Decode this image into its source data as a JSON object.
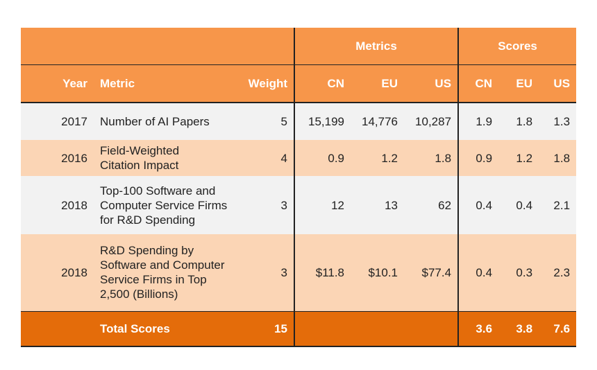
{
  "chart_data": {
    "type": "table",
    "group_headers": {
      "metrics": "Metrics",
      "scores": "Scores"
    },
    "columns": {
      "year": "Year",
      "metric": "Metric",
      "weight": "Weight",
      "metrics_cn": "CN",
      "metrics_eu": "EU",
      "metrics_us": "US",
      "scores_cn": "CN",
      "scores_eu": "EU",
      "scores_us": "US"
    },
    "rows": [
      {
        "year": "2017",
        "metric": "Number of AI Papers",
        "weight": "5",
        "m_cn": "15,199",
        "m_eu": "14,776",
        "m_us": "10,287",
        "s_cn": "1.9",
        "s_eu": "1.8",
        "s_us": "1.3"
      },
      {
        "year": "2016",
        "metric": "Field-Weighted Citation Impact",
        "weight": "4",
        "m_cn": "0.9",
        "m_eu": "1.2",
        "m_us": "1.8",
        "s_cn": "0.9",
        "s_eu": "1.2",
        "s_us": "1.8"
      },
      {
        "year": "2018",
        "metric": "Top-100 Software and Computer Service Firms for R&D Spending",
        "weight": "3",
        "m_cn": "12",
        "m_eu": "13",
        "m_us": "62",
        "s_cn": "0.4",
        "s_eu": "0.4",
        "s_us": "2.1"
      },
      {
        "year": "2018",
        "metric": "R&D Spending by Software and Computer Service Firms in Top 2,500 (Billions)",
        "weight": "3",
        "m_cn": "$11.8",
        "m_eu": "$10.1",
        "m_us": "$77.4",
        "s_cn": "0.4",
        "s_eu": "0.3",
        "s_us": "2.3"
      }
    ],
    "total": {
      "label": "Total Scores",
      "weight": "15",
      "s_cn": "3.6",
      "s_eu": "3.8",
      "s_us": "7.6"
    },
    "colors": {
      "header": "#f7964a",
      "row_alt": "#fbd5b5",
      "row": "#f2f2f2",
      "total": "#e46c0a"
    }
  }
}
